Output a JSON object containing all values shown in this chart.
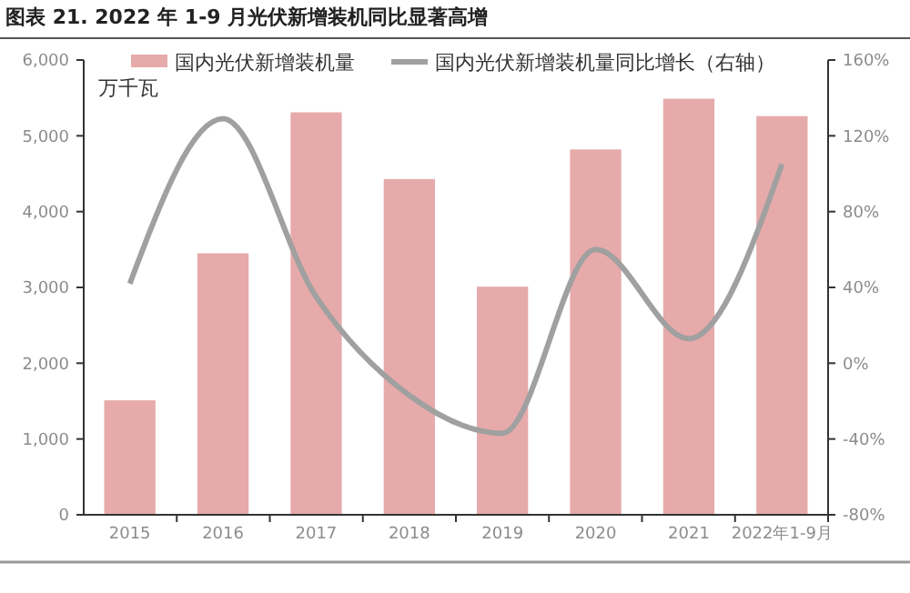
{
  "chart_data": {
    "type": "bar",
    "title": "图表 21. 2022 年 1-9 月光伏新增装机同比显著高增",
    "ylabel": "万千瓦",
    "categories": [
      "2015",
      "2016",
      "2017",
      "2018",
      "2019",
      "2020",
      "2021",
      "2022年1-9月"
    ],
    "series": [
      {
        "name": "国内光伏新增装机量",
        "color": "#e6aaaa",
        "values": [
          1510,
          3450,
          5310,
          4430,
          3010,
          4820,
          5490,
          5260
        ]
      },
      {
        "name": "国内光伏新增装机量同比增长（右轴）",
        "type": "line",
        "axis": "y2",
        "color": "#a0a0a0",
        "values": [
          42,
          129,
          35,
          -17,
          -37,
          60,
          13,
          105
        ]
      }
    ],
    "ylim": [
      0,
      6000
    ],
    "yticks": [
      {
        "value": 0,
        "label": "0"
      },
      {
        "value": 1000,
        "label": "1,000"
      },
      {
        "value": 2000,
        "label": "2,000"
      },
      {
        "value": 3000,
        "label": "3,000"
      },
      {
        "value": 4000,
        "label": "4,000"
      },
      {
        "value": 5000,
        "label": "5,000"
      },
      {
        "value": 6000,
        "label": "6,000"
      }
    ],
    "y2lim": [
      -80,
      160
    ],
    "y2ticks": [
      {
        "value": -80,
        "label": "-80%"
      },
      {
        "value": -40,
        "label": "-40%"
      },
      {
        "value": 0,
        "label": "0%"
      },
      {
        "value": 40,
        "label": "40%"
      },
      {
        "value": 80,
        "label": "80%"
      },
      {
        "value": 120,
        "label": "120%"
      },
      {
        "value": 160,
        "label": "160%"
      }
    ],
    "legend": "top",
    "grid": false
  }
}
